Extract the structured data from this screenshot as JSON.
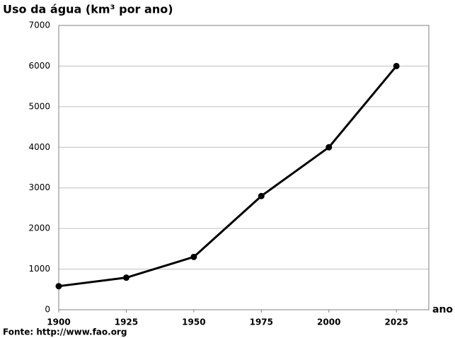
{
  "chart_data": {
    "type": "line",
    "title": "Uso da água (km³ por ano)",
    "x_label": "ano",
    "source": "Fonte: http://www.fao.org",
    "x": [
      1900,
      1925,
      1950,
      1975,
      2000,
      2025
    ],
    "series": [
      {
        "color": "#000000",
        "values": [
          580,
          790,
          1300,
          2800,
          4000,
          6000
        ]
      }
    ],
    "xlim": [
      1900,
      2037
    ],
    "xticks": [
      1900,
      1925,
      1950,
      1975,
      2000,
      2025
    ],
    "ylim": [
      0,
      7000
    ],
    "yticks": [
      0,
      1000,
      2000,
      3000,
      4000,
      5000,
      6000,
      7000
    ],
    "grid": true
  }
}
